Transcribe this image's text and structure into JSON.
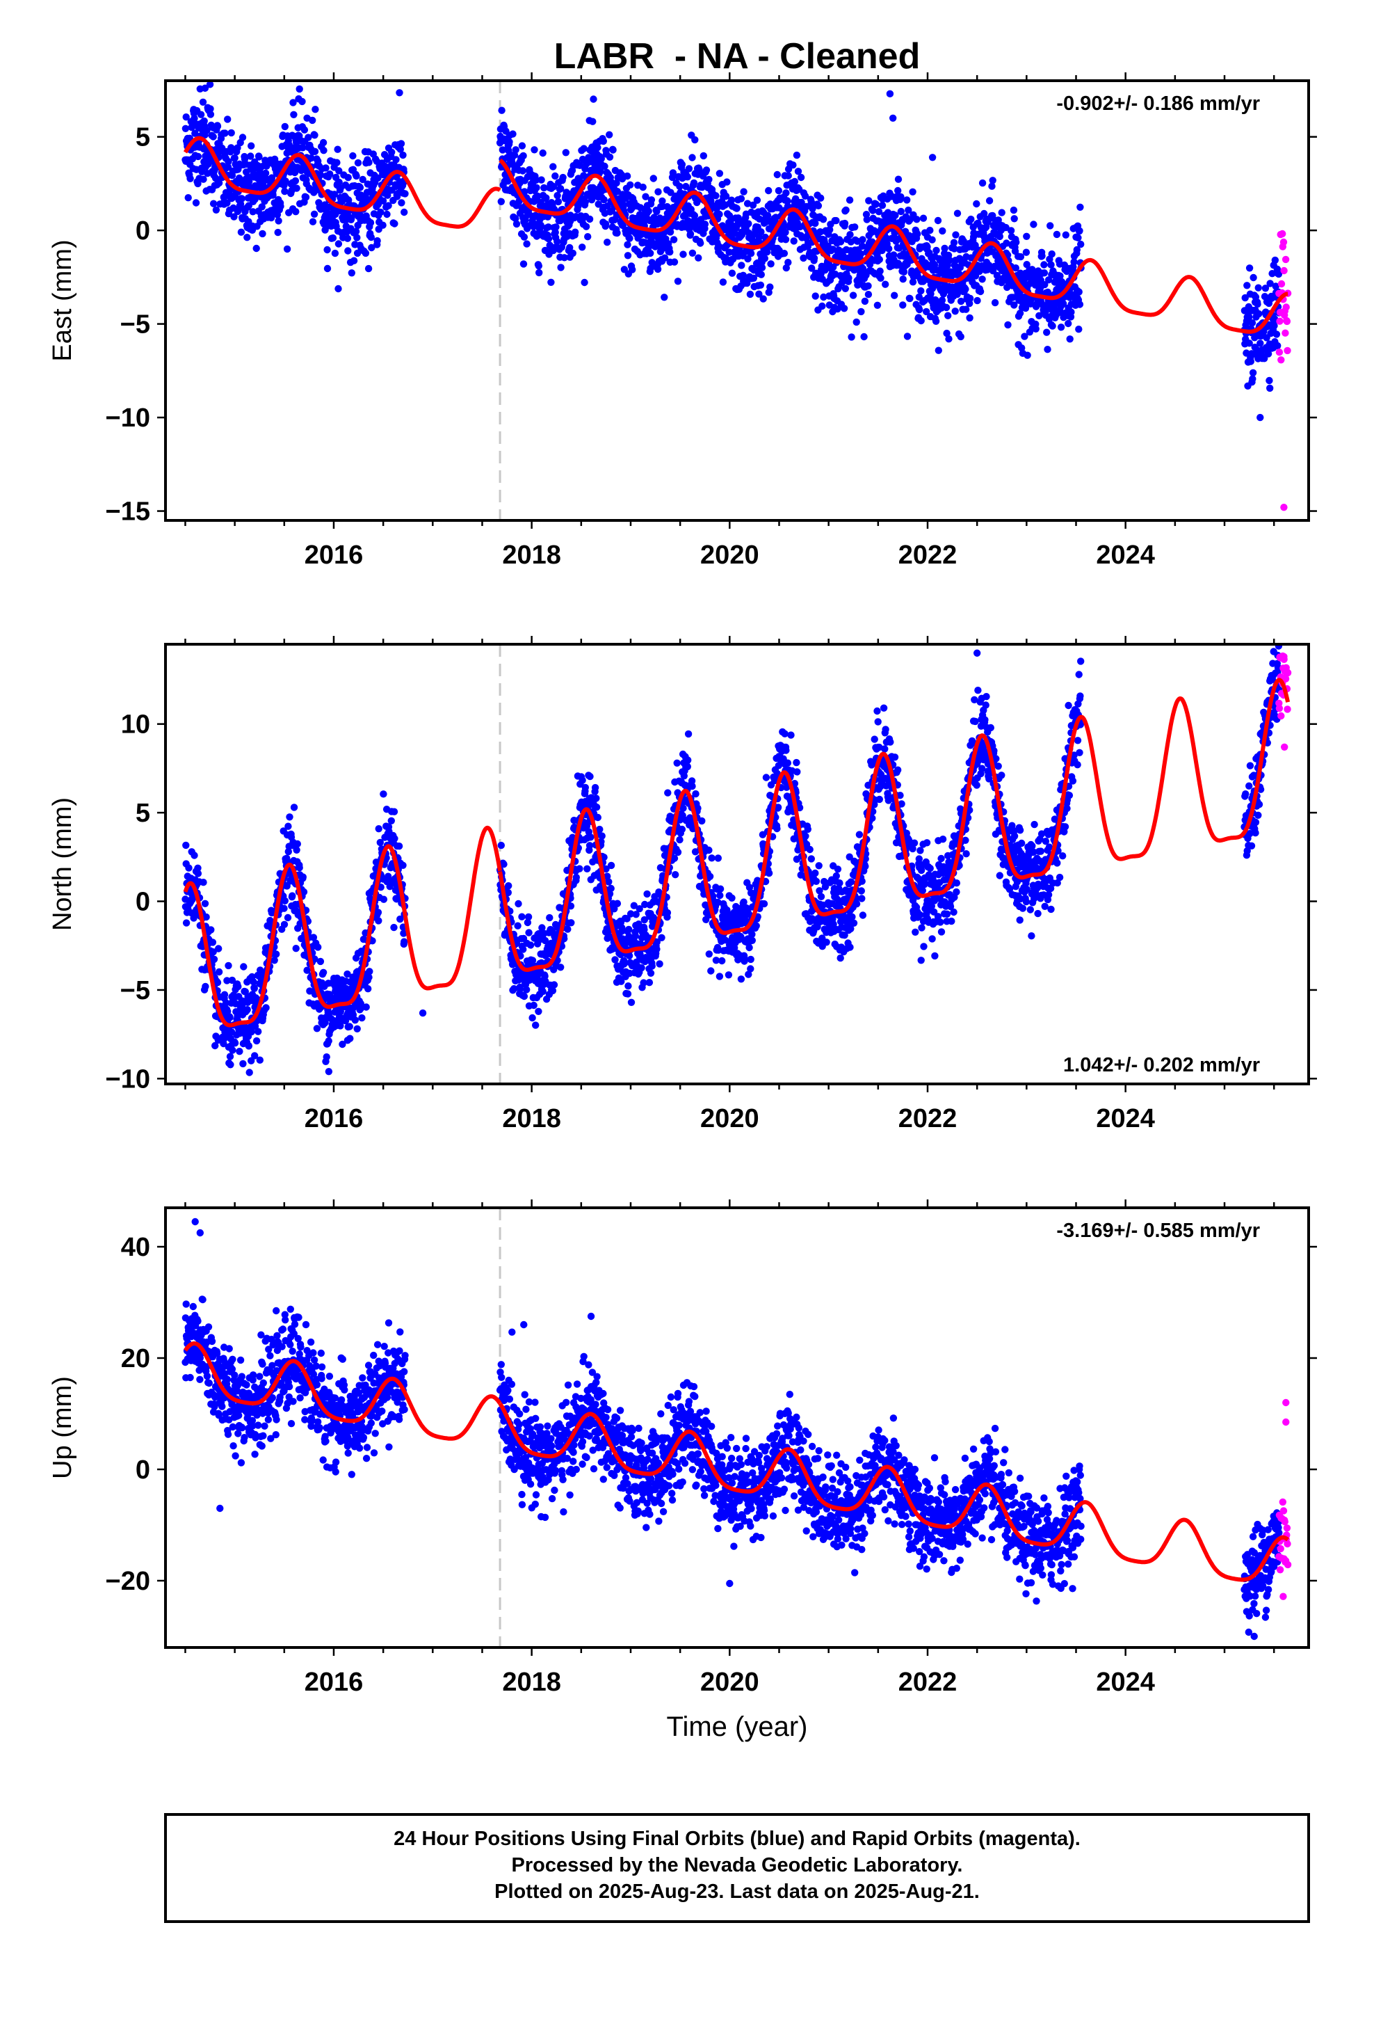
{
  "page_title": "LABR  - NA - Cleaned",
  "x_axis_label": "Time (year)",
  "footer": {
    "line1": "24 Hour Positions Using Final Orbits (blue) and Rapid Orbits (magenta).",
    "line2": "Processed by the Nevada Geodetic Laboratory.",
    "line3": "Plotted on 2025-Aug-23. Last data on 2025-Aug-21."
  },
  "colors": {
    "final_orbits": "#0000ff",
    "rapid_orbits": "#ff00ff",
    "model_fit": "#ff0000",
    "equipment_change": "#c8c8c8"
  },
  "chart_data": [
    {
      "type": "scatter",
      "name": "east",
      "ylabel": "East (mm)",
      "xlim": [
        2014.3,
        2025.85
      ],
      "ylim": [
        -15.5,
        8
      ],
      "x_ticks": [
        2016,
        2018,
        2020,
        2022,
        2024
      ],
      "y_ticks": [
        5,
        0,
        -5,
        -10,
        -15
      ],
      "rate_label": "-0.902+/- 0.186 mm/yr",
      "rate_position": "top-right",
      "equipment_change_year": 2017.68,
      "trend": {
        "rate": -0.902,
        "intercept_2020": 0.2
      },
      "seasonal": {
        "annual_amplitude": 1.2,
        "annual_phase_year": 0.65,
        "semiannual_amplitude": 0.3
      },
      "offset_after_change": 1.6,
      "final_data_spans": [
        [
          2014.5,
          2016.72
        ],
        [
          2017.68,
          2023.55
        ],
        [
          2025.2,
          2025.55
        ]
      ],
      "rapid_data_span": [
        2025.55,
        2025.64
      ],
      "scatter_sd": 1.3,
      "outliers": [
        [
          2014.7,
          7.6
        ],
        [
          2014.75,
          7.8
        ],
        [
          2021.62,
          7.3
        ],
        [
          2021.65,
          6.0
        ],
        [
          2022.05,
          3.9
        ],
        [
          2025.36,
          -10.0
        ],
        [
          2025.6,
          -14.8
        ]
      ]
    },
    {
      "type": "scatter",
      "name": "north",
      "ylabel": "North (mm)",
      "xlim": [
        2014.3,
        2025.85
      ],
      "ylim": [
        -10.3,
        14.5
      ],
      "x_ticks": [
        2016,
        2018,
        2020,
        2022,
        2024
      ],
      "y_ticks": [
        10,
        5,
        0,
        -5,
        -10
      ],
      "rate_label": "1.042+/- 0.202 mm/yr",
      "rate_position": "bottom-right",
      "equipment_change_year": 2017.68,
      "trend": {
        "rate": 1.042,
        "intercept_2020": 1.3
      },
      "seasonal": {
        "annual_amplitude": 4.2,
        "annual_phase_year": 0.55,
        "semiannual_amplitude": 1.2
      },
      "offset_after_change": 0.0,
      "final_data_spans": [
        [
          2014.5,
          2016.72
        ],
        [
          2017.68,
          2023.55
        ],
        [
          2025.2,
          2025.55
        ]
      ],
      "rapid_data_span": [
        2025.55,
        2025.64
      ],
      "scatter_sd": 1.2,
      "outliers": [
        [
          2022.5,
          14.0
        ],
        [
          2025.6,
          13.8
        ],
        [
          2015.6,
          5.3
        ],
        [
          2016.9,
          -6.3
        ],
        [
          2015.95,
          -9.6
        ]
      ]
    },
    {
      "type": "scatter",
      "name": "up",
      "ylabel": "Up (mm)",
      "xlim": [
        2014.3,
        2025.85
      ],
      "ylim": [
        -32,
        47
      ],
      "x_ticks": [
        2016,
        2018,
        2020,
        2022,
        2024
      ],
      "y_ticks": [
        40,
        20,
        0,
        -20
      ],
      "rate_label": "-3.169+/- 0.585 mm/yr",
      "rate_position": "top-right",
      "equipment_change_year": 2017.68,
      "trend": {
        "rate": -3.169,
        "intercept_2020": 0.0
      },
      "seasonal": {
        "annual_amplitude": 4.5,
        "annual_phase_year": 0.6,
        "semiannual_amplitude": 1.0
      },
      "offset_after_change": 0.0,
      "final_data_spans": [
        [
          2014.5,
          2016.72
        ],
        [
          2017.68,
          2023.55
        ],
        [
          2025.2,
          2025.55
        ]
      ],
      "rapid_data_span": [
        2025.55,
        2025.64
      ],
      "scatter_sd": 4.0,
      "outliers": [
        [
          2014.6,
          44.5
        ],
        [
          2014.65,
          42.5
        ],
        [
          2014.85,
          -7.0
        ],
        [
          2017.92,
          26.0
        ],
        [
          2018.6,
          27.5
        ],
        [
          2020.0,
          -20.5
        ],
        [
          2025.3,
          -30.0
        ],
        [
          2025.62,
          12.0
        ],
        [
          2025.62,
          8.5
        ]
      ]
    }
  ]
}
